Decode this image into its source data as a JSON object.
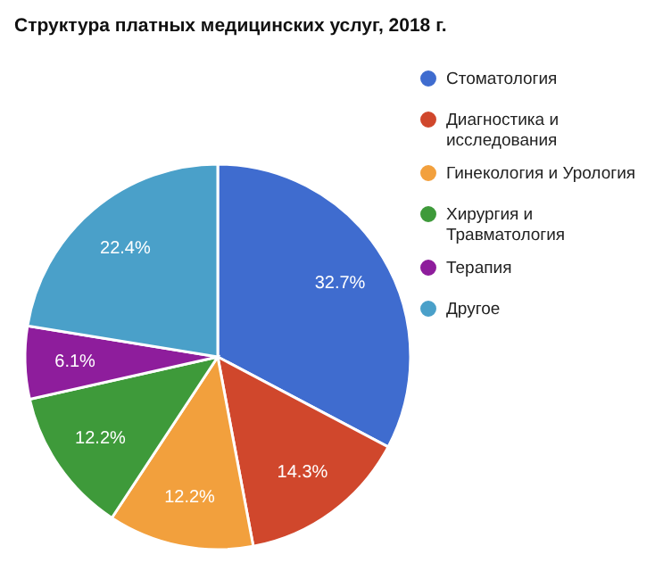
{
  "chart_data": {
    "type": "pie",
    "title": "Структура платных медицинских услуг, 2018 г.",
    "categories": [
      "Стоматология",
      "Диагностика и исследования",
      "Гинекология и Урология",
      "Хирургия и Травматология",
      "Терапия",
      "Другое"
    ],
    "values": [
      32.7,
      14.3,
      12.2,
      12.2,
      6.1,
      22.4
    ],
    "colors": [
      "#3f6ccf",
      "#d0472c",
      "#f2a03d",
      "#3e9a3a",
      "#8e1d9c",
      "#4aa0c9"
    ],
    "value_labels": [
      "32.7%",
      "14.3%",
      "12.2%",
      "12.2%",
      "6.1%",
      "22.4%"
    ],
    "legend": "right"
  }
}
